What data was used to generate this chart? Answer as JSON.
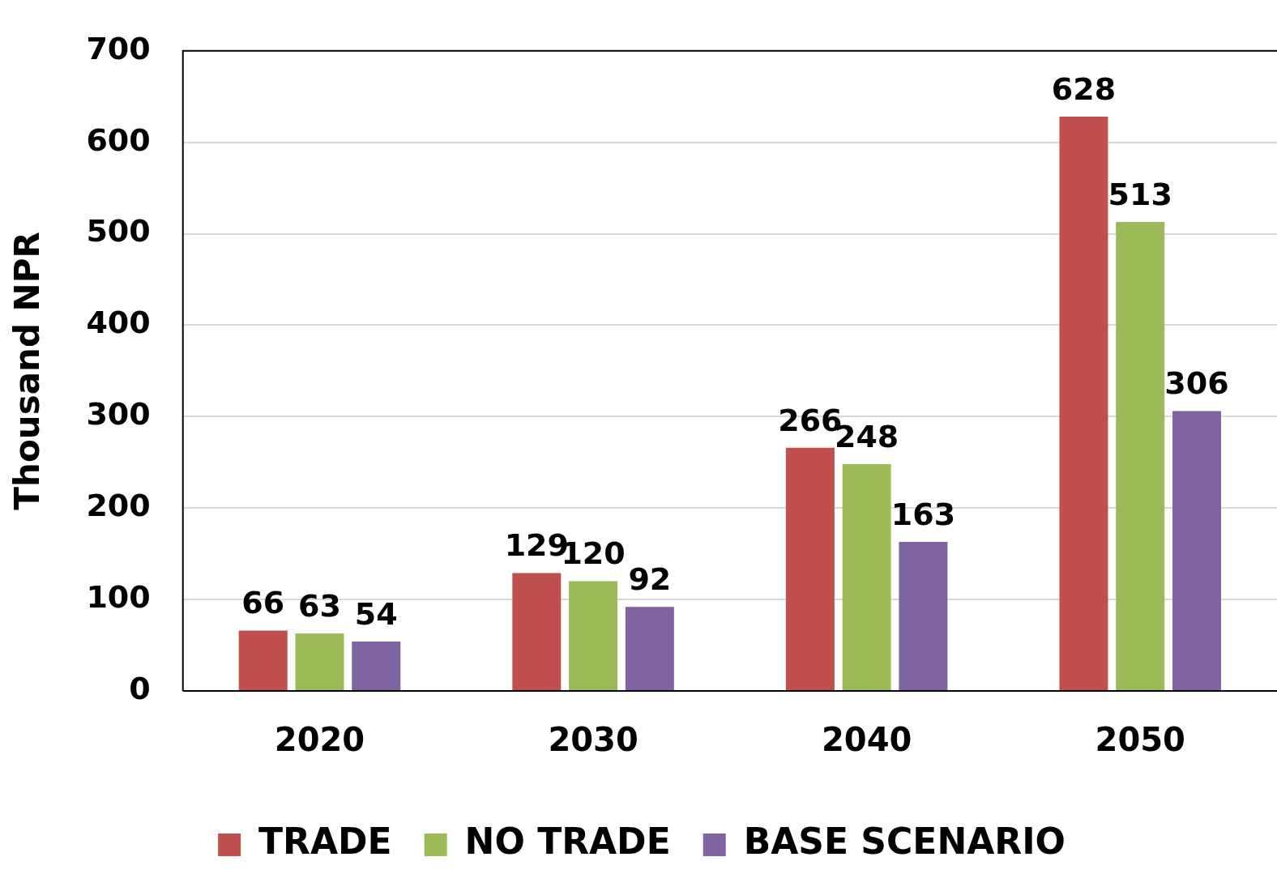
{
  "chart_data": {
    "type": "bar",
    "ylabel": "Thousand NPR",
    "categories": [
      "2020",
      "2030",
      "2040",
      "2050"
    ],
    "series": [
      {
        "name": "TRADE",
        "color": "#c0504d",
        "values": [
          66,
          129,
          266,
          628
        ]
      },
      {
        "name": "NO TRADE",
        "color": "#9bbb59",
        "values": [
          63,
          120,
          248,
          513
        ]
      },
      {
        "name": "BASE SCENARIO",
        "color": "#8064a2",
        "values": [
          54,
          92,
          163,
          306
        ]
      }
    ],
    "ylim": [
      0,
      700
    ],
    "yticks": [
      0,
      100,
      200,
      300,
      400,
      500,
      600,
      700
    ],
    "grid": "y",
    "legend": "bottom",
    "data_labels": true
  }
}
